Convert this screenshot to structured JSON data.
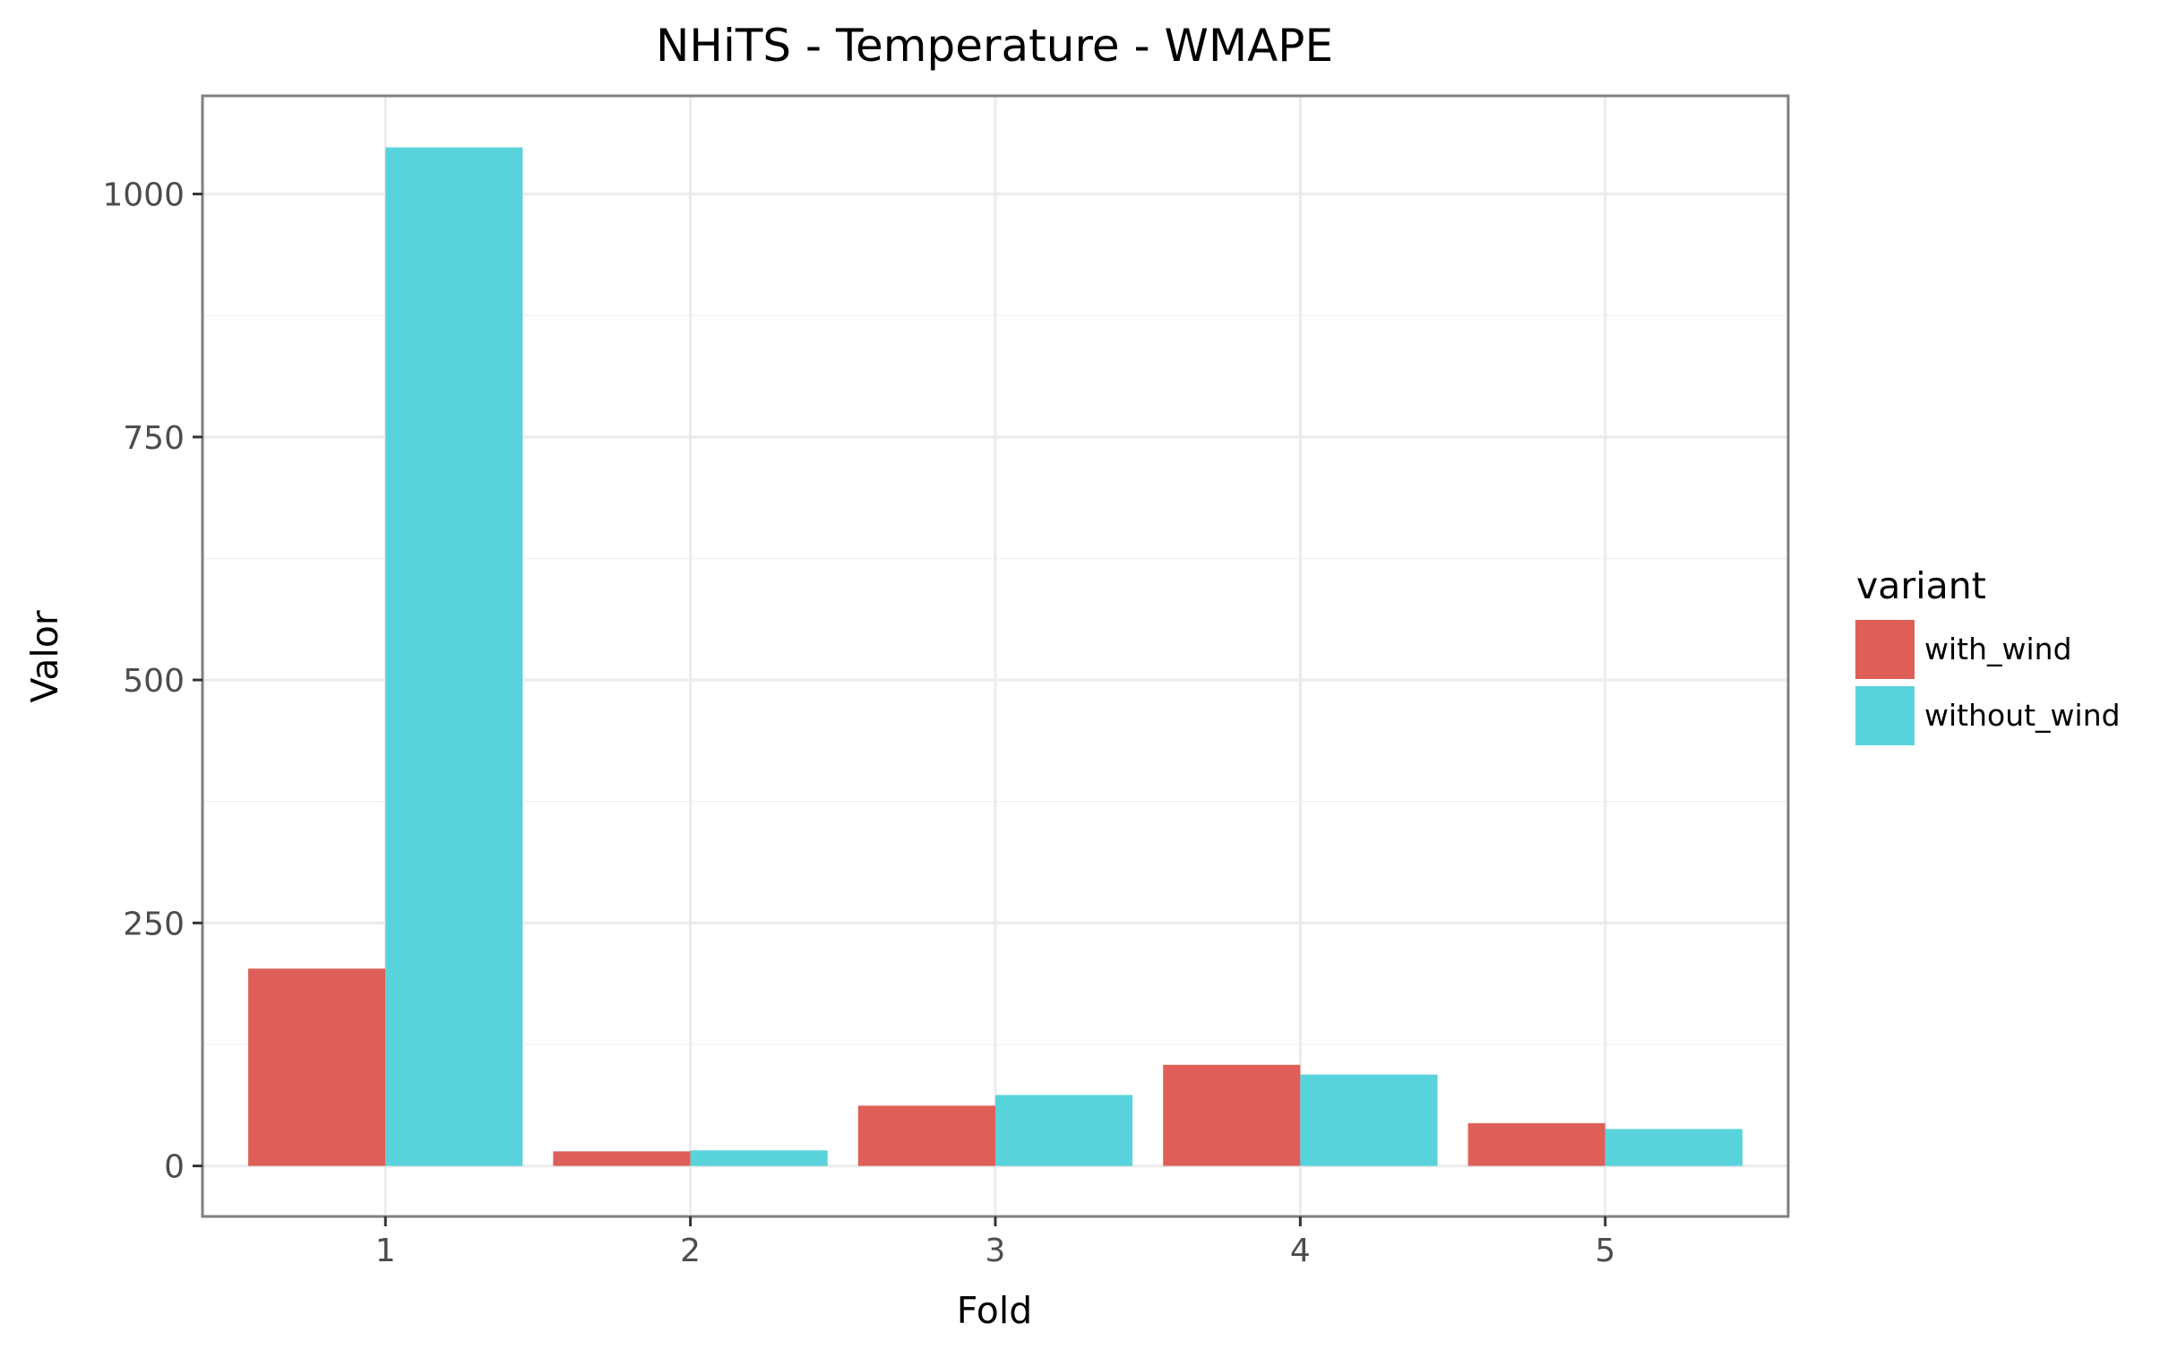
{
  "chart_data": {
    "type": "bar",
    "title": "NHiTS - Temperature - WMAPE",
    "xlabel": "Fold",
    "ylabel": "Valor",
    "categories": [
      "1",
      "2",
      "3",
      "4",
      "5"
    ],
    "series": [
      {
        "name": "with_wind",
        "color": "#DE5F57",
        "values": [
          203,
          15,
          62,
          104,
          44
        ]
      },
      {
        "name": "without_wind",
        "color": "#59D3DB",
        "values": [
          1048,
          16,
          73,
          94,
          38
        ]
      }
    ],
    "ylim": [
      -52,
      1101
    ],
    "yticks": [
      0,
      250,
      500,
      750,
      1000
    ],
    "ytick_labels": [
      "0",
      "250",
      "500",
      "750",
      "1000"
    ],
    "grid": true,
    "legend": {
      "title": "variant",
      "position": "right"
    }
  }
}
